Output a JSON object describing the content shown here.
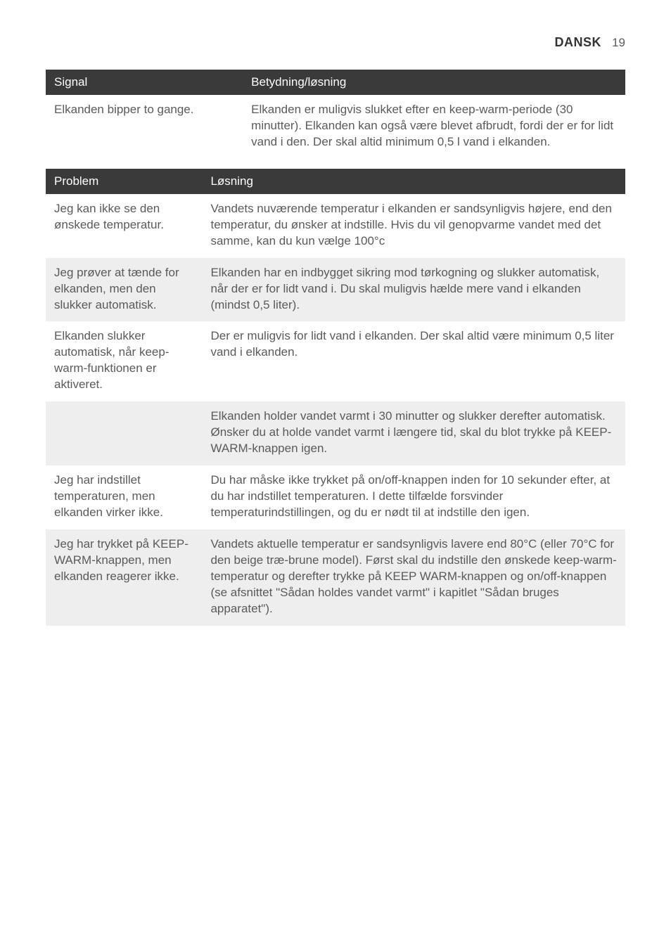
{
  "header": {
    "language": "DANSK",
    "page_number": "19"
  },
  "table1": {
    "headers": {
      "col1": "Signal",
      "col2": "Betydning/løsning"
    },
    "rows": [
      {
        "c1": "Elkanden bipper to gange.",
        "c2": "Elkanden er muligvis slukket efter en keep-warm-periode (30 minutter). Elkanden kan også være blevet afbrudt, fordi der er for lidt vand i den. Der skal altid minimum 0,5 l vand i elkanden."
      }
    ]
  },
  "table2": {
    "headers": {
      "col1": "Problem",
      "col2": "Løsning"
    },
    "rows": [
      {
        "c1": "Jeg kan ikke se den ønskede temperatur.",
        "c2": "Vandets nuværende temperatur i elkanden er sandsynligvis højere, end den temperatur, du ønsker at indstille. Hvis du vil genopvarme vandet med det samme, kan du kun vælge 100°c"
      },
      {
        "c1": "Jeg prøver at tænde for elkanden, men den slukker automatisk.",
        "c2": "Elkanden har en indbygget sikring mod tørkogning og slukker automatisk, når der er for lidt vand i. Du skal muligvis hælde mere vand i elkanden (mindst 0,5 liter)."
      },
      {
        "c1": "Elkanden slukker automatisk, når keep-warm-funktionen er aktiveret.",
        "c2": "Der er muligvis for lidt vand i elkanden. Der skal altid være minimum 0,5 liter vand i elkanden."
      },
      {
        "c1": "",
        "c2": "Elkanden holder vandet varmt i 30 minutter og slukker derefter automatisk. Ønsker du at holde vandet varmt i længere tid, skal du blot trykke på KEEP-WARM-knappen igen."
      },
      {
        "c1": "Jeg har indstillet temperaturen, men elkanden virker ikke.",
        "c2": "Du har måske ikke trykket på on/off-knappen inden for 10 sekunder efter, at du har indstillet temperaturen. I dette tilfælde forsvinder temperaturindstillingen, og du er nødt til at indstille den igen."
      },
      {
        "c1": "Jeg har trykket på KEEP-WARM-knappen, men elkanden reagerer ikke.",
        "c2": "Vandets aktuelle temperatur er sandsynligvis lavere end 80°C (eller 70°C for den beige træ-brune model). Først skal du indstille den ønskede keep-warm-temperatur og derefter trykke på KEEP WARM-knappen og on/off-knappen (se afsnittet \"Sådan holdes vandet varmt\" i kapitlet \"Sådan bruges apparatet\")."
      }
    ]
  },
  "style": {
    "header_bg": "#3a3a3a",
    "header_text": "#ffffff",
    "body_text": "#5a5a5a",
    "alt_row_bg": "#eeeeee",
    "page_bg": "#ffffff",
    "font_size_body": 17,
    "font_size_header": 18
  }
}
